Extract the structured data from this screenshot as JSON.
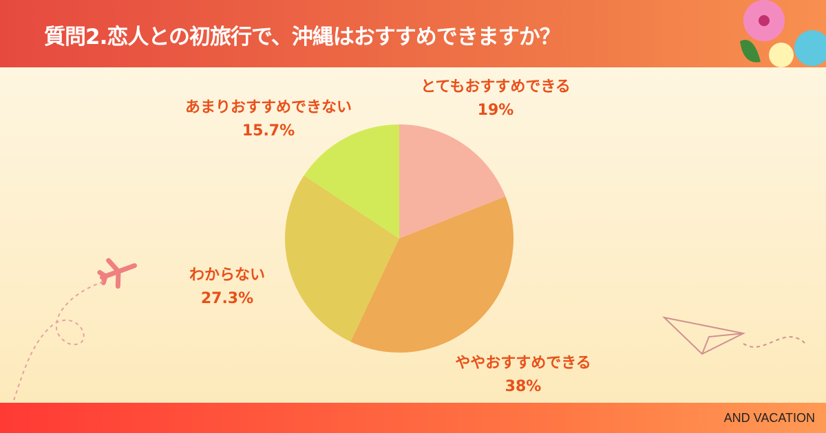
{
  "header": {
    "title": "質問2.恋人との初旅行で、沖縄はおすすめできますか？"
  },
  "footer": {
    "brand": "AND VACATION"
  },
  "chart_data": {
    "type": "pie",
    "title": "質問2.恋人との初旅行で、沖縄はおすすめできますか？",
    "start": "top",
    "direction": "clockwise",
    "slices": [
      {
        "label": "とてもおすすめできる",
        "value": 19,
        "display": "19%",
        "color": "#f7b3a0"
      },
      {
        "label": "ややおすすめできる",
        "value": 38,
        "display": "38%",
        "color": "#eeaa55"
      },
      {
        "label": "わからない",
        "value": 27.3,
        "display": "27.3%",
        "color": "#e4cc58"
      },
      {
        "label": "あまりおすすめできない",
        "value": 15.7,
        "display": "15.7%",
        "color": "#d3ea58"
      }
    ]
  }
}
